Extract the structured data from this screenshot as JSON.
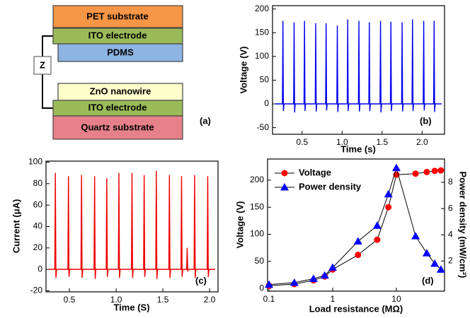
{
  "diagram": {
    "layers": [
      "PET substrate",
      "ITO electrode",
      "PDMS",
      "ZnO nanowire",
      "ITO electrode",
      "Quartz substrate"
    ],
    "impedance": "Z",
    "label": "(a)"
  },
  "chart_data": [
    {
      "type": "spike",
      "label": "(b)",
      "xlabel": "Time (s)",
      "ylabel": "Voltage (V)",
      "x": [
        0.26,
        0.4,
        0.53,
        0.67,
        0.8,
        0.94,
        1.07,
        1.21,
        1.34,
        1.48,
        1.61,
        1.75,
        1.88,
        2.02,
        2.15
      ],
      "series": [
        {
          "color": "#0000ee",
          "values": [
            175,
            172,
            175,
            170,
            170,
            165,
            178,
            175,
            172,
            175,
            173,
            172,
            178,
            175,
            175
          ],
          "troughs": [
            -15,
            -18,
            -15,
            -16,
            -14,
            -17,
            -15,
            -16,
            -15,
            -18,
            -15,
            -16,
            -15,
            -14,
            -17
          ]
        }
      ],
      "xlim": [
        0.13,
        2.28
      ],
      "xticks": [
        0.5,
        {
          "value": 1,
          "label": "1.0"
        },
        1.5,
        {
          "value": 2,
          "label": "2.0"
        }
      ],
      "ylim": [
        -64,
        207
      ],
      "yticks": [
        -50,
        0,
        50,
        100,
        150,
        200
      ]
    },
    {
      "type": "spike",
      "label": "(c)",
      "xlabel": "Time (S)",
      "ylabel": "Current (μA)",
      "x": [
        0.35,
        0.49,
        0.63,
        0.77,
        0.9,
        1.03,
        1.17,
        1.3,
        1.43,
        1.57,
        1.7,
        1.76,
        1.84,
        1.98
      ],
      "series": [
        {
          "color": "#ee0000",
          "values": [
            90,
            87,
            88,
            87,
            85,
            90,
            90,
            88,
            92,
            88,
            87,
            20,
            88,
            87
          ],
          "troughs": [
            -8,
            -7,
            -8,
            -9,
            -7,
            -8,
            -8,
            -7,
            -9,
            -8,
            -7,
            -2,
            -8,
            -7
          ]
        }
      ],
      "xlim": [
        0.25,
        2.09
      ],
      "xticks": [
        0.5,
        {
          "value": 1,
          "label": "1.0"
        },
        1.5,
        {
          "value": 2,
          "label": "2.0"
        }
      ],
      "ylim": [
        -21,
        101
      ],
      "yticks": [
        -20,
        0,
        20,
        40,
        60,
        80,
        100
      ]
    },
    {
      "type": "line",
      "label": "(d)",
      "xlabel": "Load resistance (MΩ)",
      "ylabel": "Voltage (V)",
      "y2label": "Power density (mW/cm²)",
      "x_scale": "log",
      "legend": "upper left",
      "x": [
        0.1,
        0.25,
        0.5,
        0.75,
        1,
        2.5,
        5,
        7.5,
        10,
        20,
        30,
        40,
        50
      ],
      "series": [
        {
          "name": "Voltage",
          "color": "#ff0000",
          "marker": "circle",
          "values": [
            5,
            8,
            15,
            22,
            35,
            62,
            90,
            150,
            210,
            212,
            215,
            217,
            218
          ]
        },
        {
          "name": "Power density",
          "color": "#0000ff",
          "marker": "triangle",
          "axis": "y2",
          "values": [
            0.2,
            0.35,
            0.65,
            0.9,
            1.5,
            3.5,
            4.7,
            7.1,
            9.1,
            3.9,
            2.6,
            1.8,
            1.35
          ]
        }
      ],
      "xlim": [
        0.095,
        57
      ],
      "xticks": [
        0.1,
        1,
        10
      ],
      "ylim": [
        -5,
        239
      ],
      "yticks": [
        0,
        50,
        100,
        150,
        200
      ],
      "y2lim": [
        -0.3,
        9.78
      ],
      "y2ticks": [
        2,
        4,
        6,
        8
      ]
    }
  ]
}
